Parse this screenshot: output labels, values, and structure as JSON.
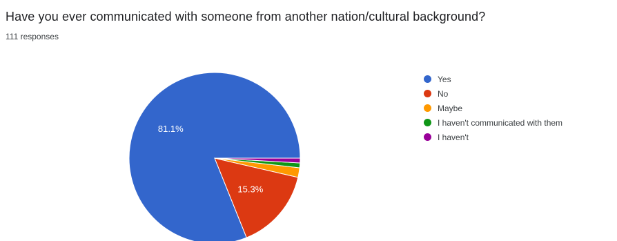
{
  "question": {
    "title": "Have you ever communicated with someone from another nation/cultural background?",
    "responses": "111 responses"
  },
  "chart_data": {
    "type": "pie",
    "labels": [
      "Yes",
      "No",
      "Maybe",
      "I haven't communicated with them",
      "I haven't"
    ],
    "values": [
      90,
      17,
      2,
      1,
      1
    ],
    "percent_labels": [
      "81.1%",
      "15.3%",
      "",
      "",
      ""
    ],
    "colors": [
      "#3366cc",
      "#dc3912",
      "#ff9900",
      "#109618",
      "#990099"
    ],
    "legend_position": "right"
  }
}
